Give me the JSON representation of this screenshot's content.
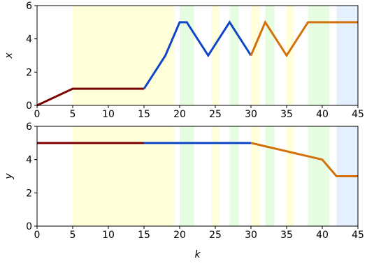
{
  "chart_data": [
    {
      "type": "line",
      "xlabel": "",
      "ylabel": "x",
      "xlim": [
        0,
        45
      ],
      "ylim": [
        0,
        6
      ],
      "xticks": [
        0,
        5,
        10,
        15,
        20,
        25,
        30,
        35,
        40,
        45
      ],
      "yticks": [
        0,
        2,
        4,
        6
      ],
      "grid": false,
      "shaded_regions": [
        {
          "x0": 5,
          "x1": 19.2,
          "color": "#ffffd9"
        },
        {
          "x0": 20,
          "x1": 22,
          "color": "#e7fde1"
        },
        {
          "x0": 24.5,
          "x1": 25.5,
          "color": "#ffffd9"
        },
        {
          "x0": 27,
          "x1": 28.3,
          "color": "#e7fde1"
        },
        {
          "x0": 30,
          "x1": 31.2,
          "color": "#ffffd9"
        },
        {
          "x0": 32,
          "x1": 33.3,
          "color": "#e7fde1"
        },
        {
          "x0": 35,
          "x1": 36,
          "color": "#ffffd9"
        },
        {
          "x0": 38,
          "x1": 41,
          "color": "#e7fde1"
        },
        {
          "x0": 42,
          "x1": 45,
          "color": "#e5f0ff"
        }
      ],
      "series": [
        {
          "color": "#7f0000",
          "x": [
            0,
            5,
            15
          ],
          "y": [
            0,
            1,
            1
          ]
        },
        {
          "color": "#0f46c8",
          "x": [
            15,
            18,
            20,
            21,
            24,
            27,
            30
          ],
          "y": [
            1,
            3,
            5,
            5,
            3,
            5,
            3
          ]
        },
        {
          "color": "#d2700a",
          "x": [
            30,
            32,
            35,
            38,
            45
          ],
          "y": [
            3,
            5,
            3,
            5,
            5
          ]
        }
      ]
    },
    {
      "type": "line",
      "xlabel": "k",
      "ylabel": "y",
      "xlim": [
        0,
        45
      ],
      "ylim": [
        0,
        6
      ],
      "xticks": [
        0,
        5,
        10,
        15,
        20,
        25,
        30,
        35,
        40,
        45
      ],
      "yticks": [
        0,
        2,
        4,
        6
      ],
      "grid": false,
      "shaded_regions": [
        {
          "x0": 5,
          "x1": 19.2,
          "color": "#ffffd9"
        },
        {
          "x0": 20,
          "x1": 22,
          "color": "#e7fde1"
        },
        {
          "x0": 24.5,
          "x1": 25.5,
          "color": "#ffffd9"
        },
        {
          "x0": 27,
          "x1": 28.3,
          "color": "#e7fde1"
        },
        {
          "x0": 30,
          "x1": 31.2,
          "color": "#ffffd9"
        },
        {
          "x0": 32,
          "x1": 33.3,
          "color": "#e7fde1"
        },
        {
          "x0": 35,
          "x1": 36,
          "color": "#ffffd9"
        },
        {
          "x0": 38,
          "x1": 41,
          "color": "#e7fde1"
        },
        {
          "x0": 42,
          "x1": 45,
          "color": "#e5f0ff"
        }
      ],
      "series": [
        {
          "color": "#7f0000",
          "x": [
            0,
            15
          ],
          "y": [
            5,
            5
          ]
        },
        {
          "color": "#0f46c8",
          "x": [
            15,
            30
          ],
          "y": [
            5,
            5
          ]
        },
        {
          "color": "#d2700a",
          "x": [
            30,
            40,
            42,
            45
          ],
          "y": [
            5,
            4,
            3,
            3
          ]
        }
      ]
    }
  ]
}
